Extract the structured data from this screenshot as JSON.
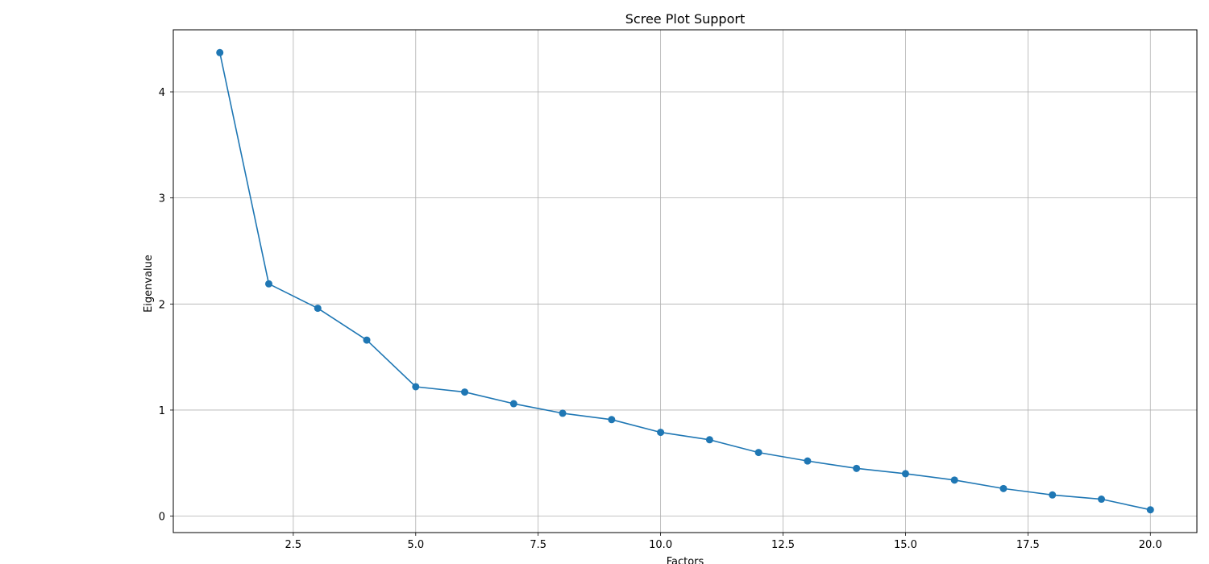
{
  "chart_data": {
    "type": "line",
    "title": "Scree Plot Support",
    "xlabel": "Factors",
    "ylabel": "Eigenvalue",
    "grid": true,
    "xlim": [
      0.05,
      20.95
    ],
    "ylim": [
      -0.155,
      4.585
    ],
    "xticks": [
      2.5,
      5.0,
      7.5,
      10.0,
      12.5,
      15.0,
      17.5,
      20.0
    ],
    "xtick_labels": [
      "2.5",
      "5.0",
      "7.5",
      "10.0",
      "12.5",
      "15.0",
      "17.5",
      "20.0"
    ],
    "yticks": [
      0,
      1,
      2,
      3,
      4
    ],
    "ytick_labels": [
      "0",
      "1",
      "2",
      "3",
      "4"
    ],
    "series": [
      {
        "name": "Eigenvalue",
        "color": "#1f77b4",
        "x": [
          1,
          2,
          3,
          4,
          5,
          6,
          7,
          8,
          9,
          10,
          11,
          12,
          13,
          14,
          15,
          16,
          17,
          18,
          19,
          20
        ],
        "values": [
          4.37,
          2.19,
          1.96,
          1.66,
          1.22,
          1.17,
          1.06,
          0.97,
          0.91,
          0.79,
          0.72,
          0.6,
          0.52,
          0.45,
          0.4,
          0.34,
          0.26,
          0.2,
          0.16,
          0.06
        ]
      }
    ]
  }
}
